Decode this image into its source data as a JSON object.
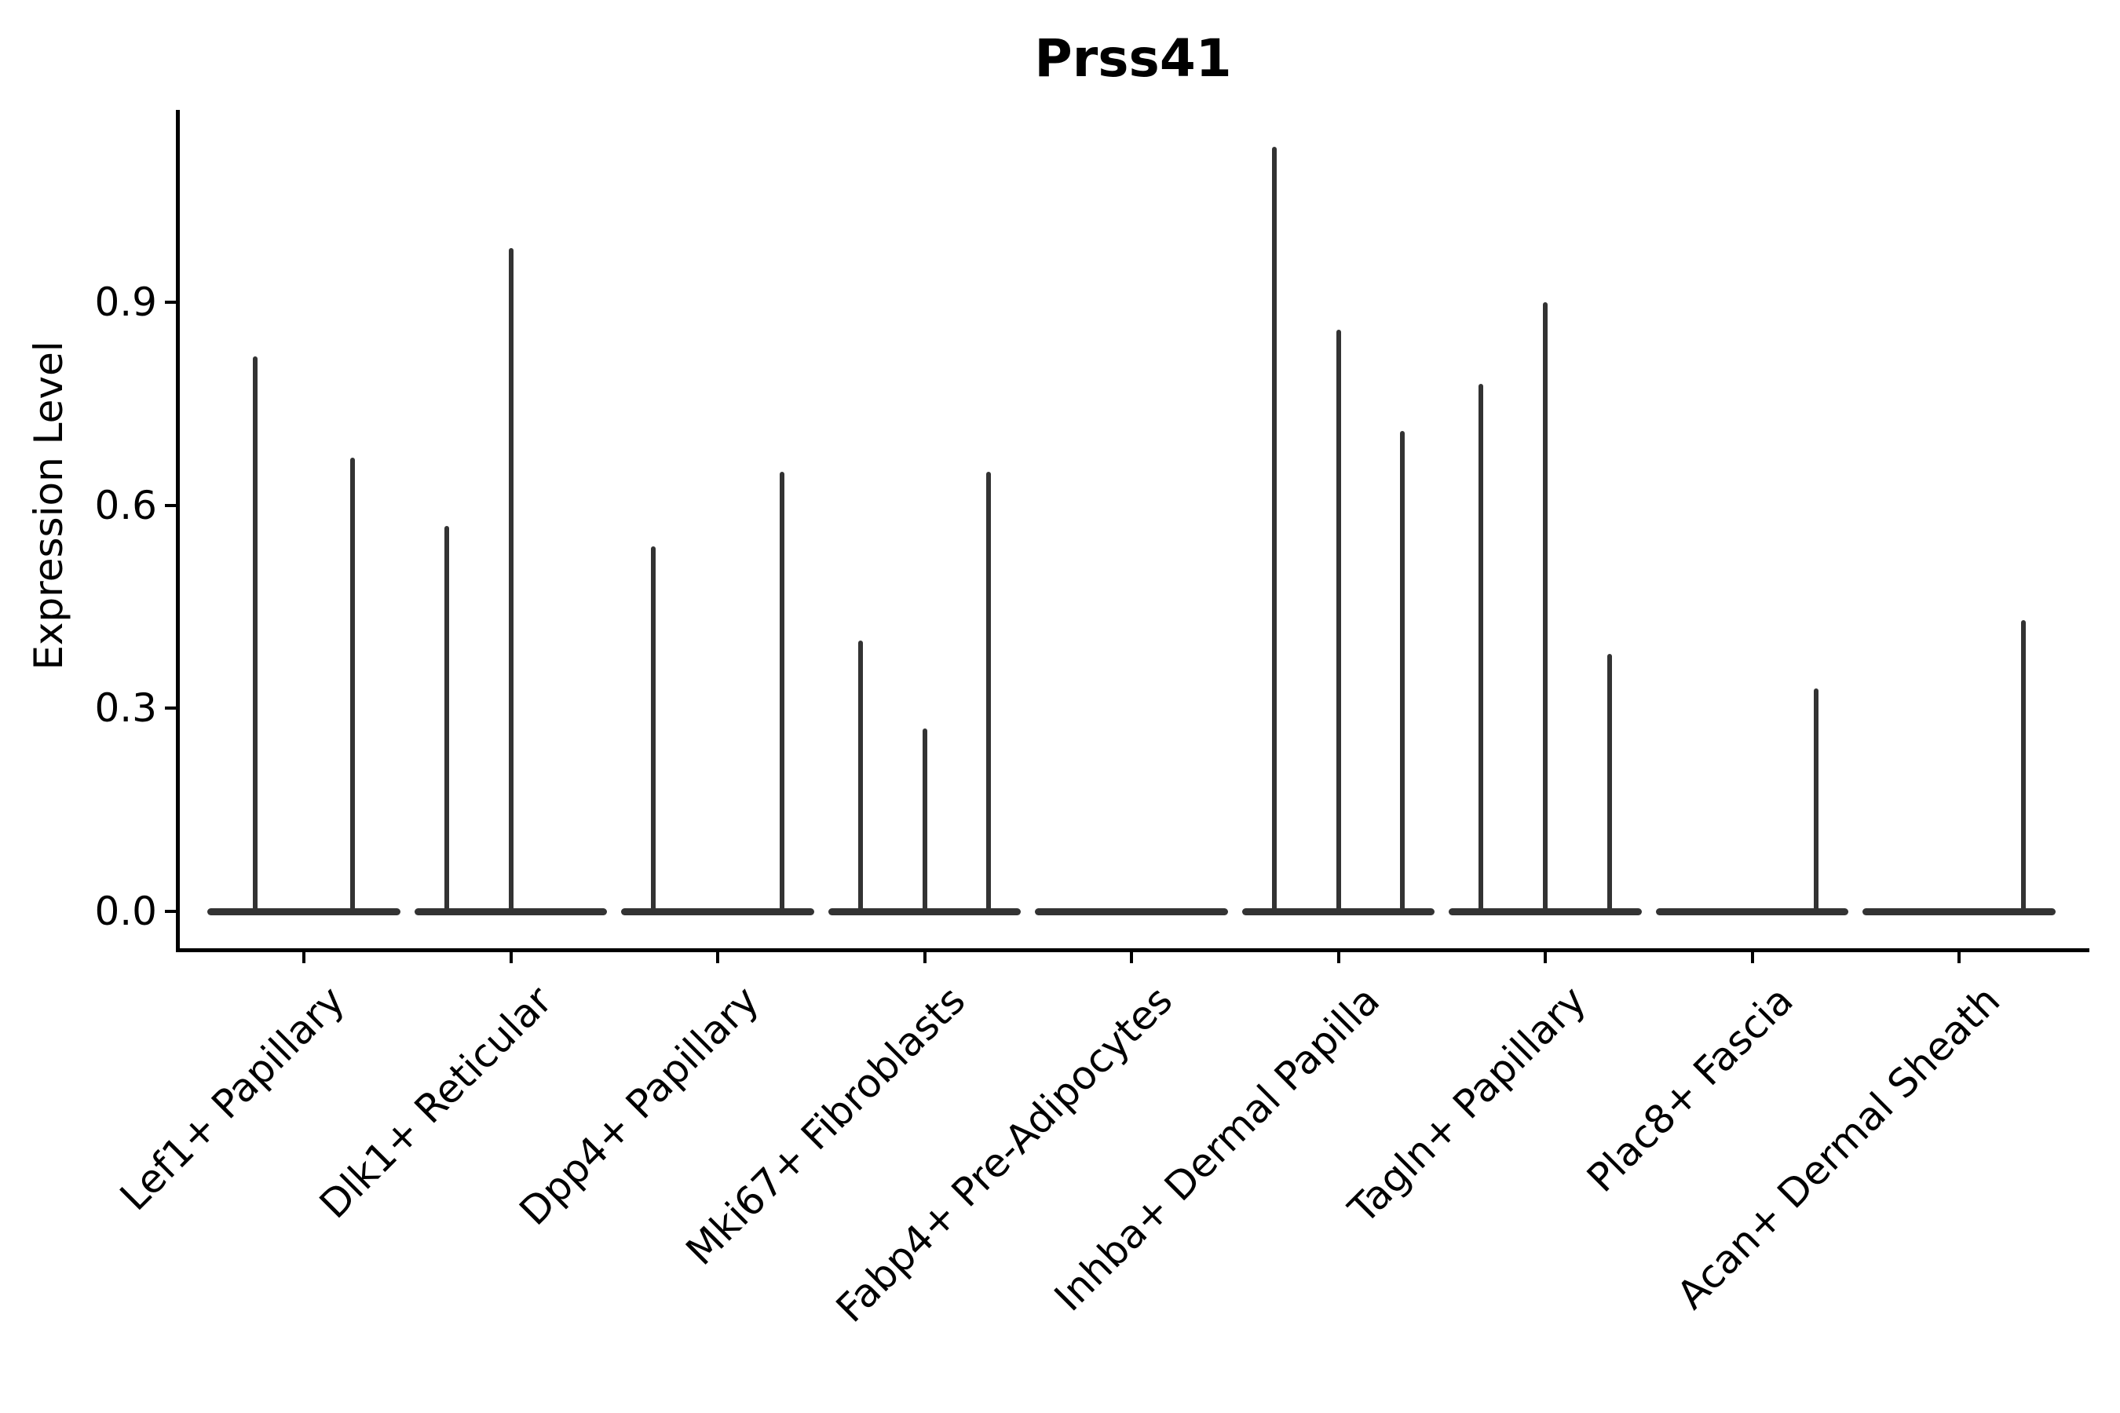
{
  "figure": {
    "title": "Prss41",
    "y_axis": {
      "label": "Expression Level",
      "tick_labels": [
        "0.0",
        "0.3",
        "0.6",
        "0.9"
      ]
    },
    "colors": {
      "violin": "#333333",
      "axis": "#000000",
      "text": "#000000",
      "background": "#ffffff"
    }
  },
  "chart_data": {
    "type": "violin",
    "title": "Prss41",
    "xlabel": "",
    "ylabel": "Expression Level",
    "ylim": [
      -0.055,
      1.185
    ],
    "yticks": [
      0.0,
      0.3,
      0.6,
      0.9
    ],
    "grid": false,
    "legend": false,
    "categories": [
      "Lef1+ Papillary",
      "Dlk1+ Reticular",
      "Dpp4+ Papillary",
      "Mki67+ Fibroblasts",
      "Fabp4+ Pre-Adipocytes",
      "Inhba+ Dermal Papilla",
      "Tagln+ Papillary",
      "Plac8+ Fascia",
      "Acan+ Dermal Sheath"
    ],
    "groups": [
      {
        "category": "Lef1+ Papillary",
        "violin_max_values": [
          0.82,
          0.67
        ]
      },
      {
        "category": "Dlk1+ Reticular",
        "violin_max_values": [
          0.57,
          0.98,
          0
        ]
      },
      {
        "category": "Dpp4+ Papillary",
        "violin_max_values": [
          0.54,
          0,
          0.65
        ]
      },
      {
        "category": "Mki67+ Fibroblasts",
        "violin_max_values": [
          0.4,
          0.27,
          0.65
        ]
      },
      {
        "category": "Fabp4+ Pre-Adipocytes",
        "violin_max_values": [
          0,
          0,
          0
        ]
      },
      {
        "category": "Inhba+ Dermal Papilla",
        "violin_max_values": [
          1.13,
          0.86,
          0.71
        ]
      },
      {
        "category": "Tagln+ Papillary",
        "violin_max_values": [
          0.78,
          0.9,
          0.38
        ]
      },
      {
        "category": "Plac8+ Fascia",
        "violin_max_values": [
          0,
          0,
          0.33
        ]
      },
      {
        "category": "Acan+ Dermal Sheath",
        "violin_max_values": [
          0,
          0,
          0.43
        ]
      }
    ],
    "notes": "Each category shows thin spike-shaped violins with a flat density base at expression 0; spike height equals the maximum expression value."
  }
}
